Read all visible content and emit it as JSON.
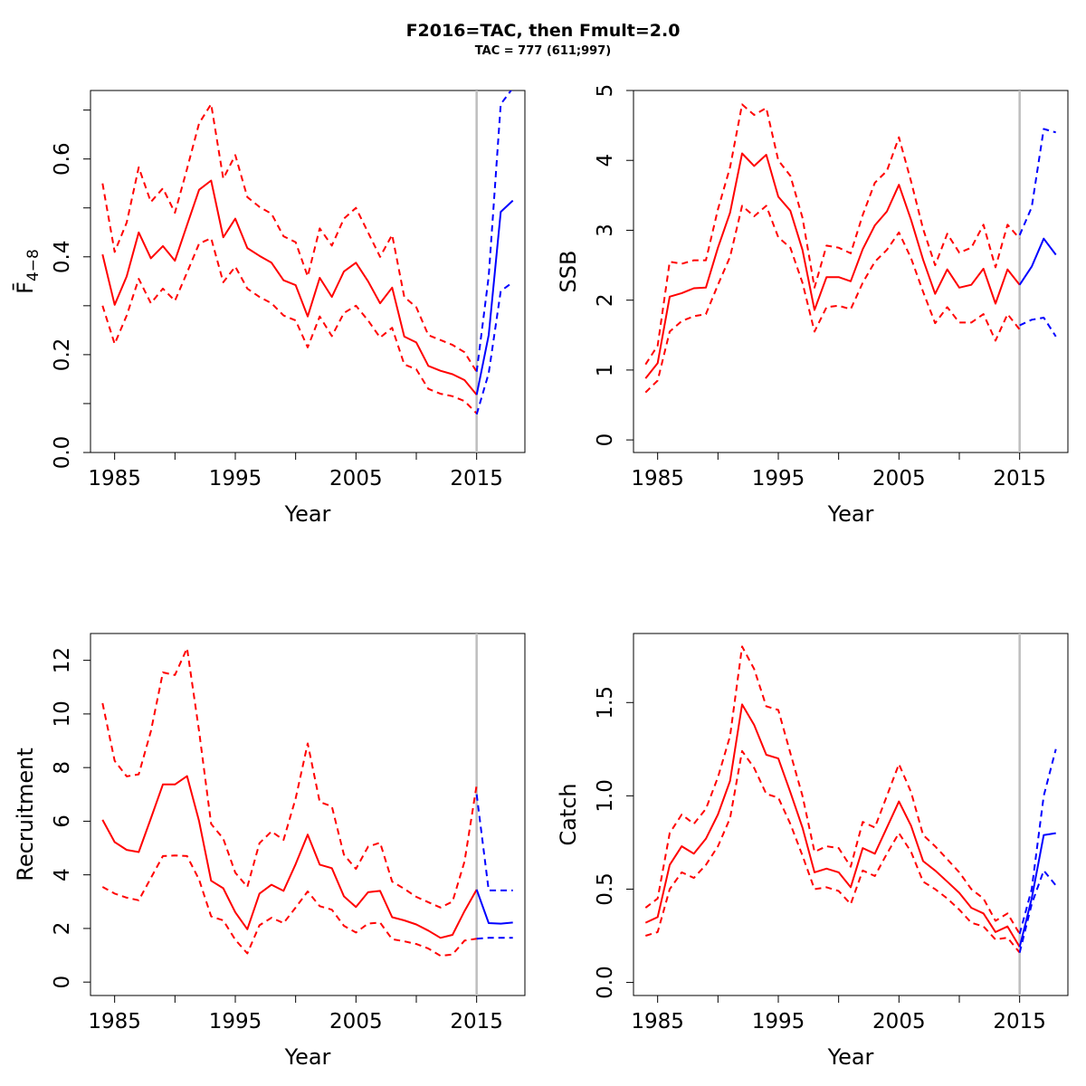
{
  "figure": {
    "title": "F2016=TAC, then Fmult=2.0",
    "subtitle": "TAC = 777 (611;997)"
  },
  "colors": {
    "historical": "#ff0000",
    "forecast": "#0000ff",
    "divider": "#bebebe",
    "axis": "#000000"
  },
  "chart_data": [
    {
      "type": "line",
      "id": "fbar",
      "ylabel": "F̄",
      "ylabel_sub": "4−8",
      "xlabel": "Year",
      "xlim": [
        1983,
        2019
      ],
      "ylim": [
        0,
        0.74
      ],
      "xticks": [
        1985,
        1995,
        2005,
        2015
      ],
      "yticks": [
        0.0,
        0.2,
        0.4,
        0.6
      ],
      "ytick_labels": [
        "0.0",
        "0.2",
        "0.4",
        "0.6"
      ],
      "yminor": [
        0.1,
        0.3,
        0.5,
        0.7
      ],
      "divider_year": 2015,
      "x": [
        1984,
        1985,
        1986,
        1987,
        1988,
        1989,
        1990,
        1991,
        1992,
        1993,
        1994,
        1995,
        1996,
        1997,
        1998,
        1999,
        2000,
        2001,
        2002,
        2003,
        2004,
        2005,
        2006,
        2007,
        2008,
        2009,
        2010,
        2011,
        2012,
        2013,
        2014,
        2015
      ],
      "series": [
        {
          "role": "estimate",
          "values": [
            0.405,
            0.302,
            0.36,
            0.45,
            0.397,
            0.422,
            0.392,
            0.465,
            0.537,
            0.556,
            0.44,
            0.478,
            0.418,
            0.402,
            0.388,
            0.352,
            0.342,
            0.278,
            0.357,
            0.318,
            0.37,
            0.388,
            0.35,
            0.305,
            0.337,
            0.237,
            0.225,
            0.177,
            0.167,
            0.16,
            0.148,
            0.118
          ]
        },
        {
          "role": "upper",
          "values": [
            0.55,
            0.41,
            0.47,
            0.583,
            0.512,
            0.54,
            0.49,
            0.58,
            0.673,
            0.712,
            0.56,
            0.608,
            0.522,
            0.502,
            0.488,
            0.442,
            0.43,
            0.36,
            0.458,
            0.423,
            0.478,
            0.5,
            0.45,
            0.4,
            0.445,
            0.318,
            0.297,
            0.24,
            0.23,
            0.22,
            0.205,
            0.165
          ]
        },
        {
          "role": "lower",
          "values": [
            0.3,
            0.222,
            0.28,
            0.355,
            0.305,
            0.335,
            0.31,
            0.368,
            0.427,
            0.438,
            0.348,
            0.38,
            0.335,
            0.318,
            0.305,
            0.28,
            0.27,
            0.215,
            0.278,
            0.238,
            0.285,
            0.3,
            0.27,
            0.235,
            0.255,
            0.18,
            0.17,
            0.13,
            0.12,
            0.115,
            0.105,
            0.08
          ]
        }
      ],
      "forecast_x": [
        2015,
        2016,
        2017,
        2018
      ],
      "forecast": [
        {
          "role": "estimate",
          "values": [
            0.118,
            0.24,
            0.492,
            0.515
          ]
        },
        {
          "role": "upper",
          "values": [
            0.165,
            0.36,
            0.712,
            0.745
          ]
        },
        {
          "role": "lower",
          "values": [
            0.078,
            0.162,
            0.33,
            0.348
          ]
        }
      ]
    },
    {
      "type": "line",
      "id": "ssb",
      "ylabel": "SSB",
      "xlabel": "Year",
      "xlim": [
        1983,
        2019
      ],
      "ylim": [
        -0.18,
        5.0
      ],
      "xticks": [
        1985,
        1995,
        2005,
        2015
      ],
      "yticks": [
        0,
        1,
        2,
        3,
        4,
        5
      ],
      "ytick_labels": [
        "0",
        "1",
        "2",
        "3",
        "4",
        "5"
      ],
      "yminor": [],
      "divider_year": 2015,
      "x": [
        1984,
        1985,
        1986,
        1987,
        1988,
        1989,
        1990,
        1991,
        1992,
        1993,
        1994,
        1995,
        1996,
        1997,
        1998,
        1999,
        2000,
        2001,
        2002,
        2003,
        2004,
        2005,
        2006,
        2007,
        2008,
        2009,
        2010,
        2011,
        2012,
        2013,
        2014,
        2015
      ],
      "series": [
        {
          "role": "estimate",
          "values": [
            0.88,
            1.1,
            2.05,
            2.1,
            2.17,
            2.18,
            2.75,
            3.25,
            4.1,
            3.92,
            4.08,
            3.48,
            3.28,
            2.72,
            1.86,
            2.33,
            2.33,
            2.27,
            2.73,
            3.07,
            3.27,
            3.65,
            3.15,
            2.58,
            2.09,
            2.44,
            2.18,
            2.22,
            2.45,
            1.95,
            2.44,
            2.22
          ]
        },
        {
          "role": "upper",
          "values": [
            1.08,
            1.35,
            2.55,
            2.52,
            2.57,
            2.57,
            3.3,
            3.9,
            4.8,
            4.65,
            4.75,
            4.0,
            3.78,
            3.18,
            2.18,
            2.78,
            2.75,
            2.67,
            3.22,
            3.68,
            3.85,
            4.33,
            3.7,
            3.02,
            2.5,
            2.95,
            2.68,
            2.75,
            3.08,
            2.47,
            3.08,
            2.88
          ]
        },
        {
          "role": "lower",
          "values": [
            0.68,
            0.85,
            1.55,
            1.7,
            1.77,
            1.8,
            2.22,
            2.62,
            3.35,
            3.2,
            3.35,
            2.9,
            2.75,
            2.25,
            1.55,
            1.9,
            1.92,
            1.87,
            2.25,
            2.55,
            2.72,
            2.97,
            2.6,
            2.12,
            1.67,
            1.9,
            1.68,
            1.68,
            1.8,
            1.42,
            1.8,
            1.58
          ]
        }
      ],
      "forecast_x": [
        2015,
        2016,
        2017,
        2018
      ],
      "forecast": [
        {
          "role": "estimate",
          "values": [
            2.22,
            2.48,
            2.88,
            2.65
          ]
        },
        {
          "role": "upper",
          "values": [
            2.93,
            3.33,
            4.45,
            4.4
          ]
        },
        {
          "role": "lower",
          "values": [
            1.64,
            1.72,
            1.75,
            1.48
          ]
        }
      ]
    },
    {
      "type": "line",
      "id": "recruitment",
      "ylabel": "Recruitment",
      "xlabel": "Year",
      "xlim": [
        1983,
        2019
      ],
      "ylim": [
        -0.5,
        13.0
      ],
      "xticks": [
        1985,
        1995,
        2005,
        2015
      ],
      "yticks": [
        0,
        2,
        4,
        6,
        8,
        10,
        12
      ],
      "ytick_labels": [
        "0",
        "2",
        "4",
        "6",
        "8",
        "10",
        "12"
      ],
      "yminor": [],
      "divider_year": 2015,
      "x": [
        1984,
        1985,
        1986,
        1987,
        1988,
        1989,
        1990,
        1991,
        1992,
        1993,
        1994,
        1995,
        1996,
        1997,
        1998,
        1999,
        2000,
        2001,
        2002,
        2003,
        2004,
        2005,
        2006,
        2007,
        2008,
        2009,
        2010,
        2011,
        2012,
        2013,
        2014,
        2015
      ],
      "series": [
        {
          "role": "estimate",
          "values": [
            6.05,
            5.22,
            4.93,
            4.85,
            6.1,
            7.37,
            7.37,
            7.68,
            6.0,
            3.78,
            3.5,
            2.6,
            1.97,
            3.3,
            3.63,
            3.4,
            4.4,
            5.5,
            4.38,
            4.25,
            3.2,
            2.8,
            3.35,
            3.4,
            2.42,
            2.3,
            2.15,
            1.92,
            1.65,
            1.76,
            2.65,
            3.45
          ]
        },
        {
          "role": "upper",
          "values": [
            10.4,
            8.25,
            7.67,
            7.75,
            9.35,
            11.55,
            11.45,
            12.45,
            9.35,
            5.9,
            5.35,
            4.08,
            3.55,
            5.18,
            5.62,
            5.3,
            6.85,
            8.9,
            6.72,
            6.55,
            4.75,
            4.22,
            5.05,
            5.2,
            3.75,
            3.48,
            3.18,
            2.98,
            2.78,
            3.0,
            4.5,
            7.35
          ]
        },
        {
          "role": "lower",
          "values": [
            3.55,
            3.3,
            3.15,
            3.05,
            3.88,
            4.7,
            4.72,
            4.7,
            3.82,
            2.45,
            2.3,
            1.58,
            1.07,
            2.12,
            2.4,
            2.2,
            2.78,
            3.38,
            2.83,
            2.7,
            2.1,
            1.85,
            2.18,
            2.22,
            1.6,
            1.52,
            1.42,
            1.25,
            0.98,
            1.03,
            1.55,
            1.62
          ]
        }
      ],
      "forecast_x": [
        2015,
        2016,
        2017,
        2018
      ],
      "forecast": [
        {
          "role": "estimate",
          "values": [
            3.45,
            2.2,
            2.18,
            2.22
          ]
        },
        {
          "role": "upper",
          "values": [
            7.0,
            3.42,
            3.42,
            3.42
          ]
        },
        {
          "role": "lower",
          "values": [
            1.62,
            1.65,
            1.65,
            1.65
          ]
        }
      ]
    },
    {
      "type": "line",
      "id": "catch",
      "ylabel": "Catch",
      "xlabel": "Year",
      "xlim": [
        1983,
        2019
      ],
      "ylim": [
        -0.07,
        1.87
      ],
      "xticks": [
        1985,
        1995,
        2005,
        2015
      ],
      "yticks": [
        0.0,
        0.5,
        1.0,
        1.5
      ],
      "ytick_labels": [
        "0.0",
        "0.5",
        "1.0",
        "1.5"
      ],
      "yminor": [],
      "divider_year": 2015,
      "x": [
        1984,
        1985,
        1986,
        1987,
        1988,
        1989,
        1990,
        1991,
        1992,
        1993,
        1994,
        1995,
        1996,
        1997,
        1998,
        1999,
        2000,
        2001,
        2002,
        2003,
        2004,
        2005,
        2006,
        2007,
        2008,
        2009,
        2010,
        2011,
        2012,
        2013,
        2014,
        2015
      ],
      "series": [
        {
          "role": "estimate",
          "values": [
            0.32,
            0.35,
            0.63,
            0.73,
            0.69,
            0.77,
            0.9,
            1.08,
            1.49,
            1.38,
            1.22,
            1.2,
            1.02,
            0.83,
            0.59,
            0.61,
            0.59,
            0.51,
            0.72,
            0.69,
            0.83,
            0.97,
            0.84,
            0.65,
            0.6,
            0.54,
            0.48,
            0.4,
            0.37,
            0.27,
            0.3,
            0.19
          ]
        },
        {
          "role": "upper",
          "values": [
            0.4,
            0.45,
            0.8,
            0.9,
            0.85,
            0.93,
            1.1,
            1.32,
            1.8,
            1.68,
            1.48,
            1.46,
            1.23,
            1.0,
            0.7,
            0.73,
            0.72,
            0.62,
            0.86,
            0.83,
            1.0,
            1.17,
            1.02,
            0.79,
            0.73,
            0.66,
            0.59,
            0.5,
            0.45,
            0.33,
            0.37,
            0.26
          ]
        },
        {
          "role": "lower",
          "values": [
            0.25,
            0.27,
            0.5,
            0.59,
            0.56,
            0.63,
            0.73,
            0.88,
            1.24,
            1.15,
            1.01,
            0.99,
            0.85,
            0.68,
            0.5,
            0.51,
            0.49,
            0.42,
            0.6,
            0.57,
            0.69,
            0.8,
            0.7,
            0.54,
            0.5,
            0.45,
            0.39,
            0.32,
            0.3,
            0.23,
            0.24,
            0.16
          ]
        }
      ],
      "forecast_x": [
        2015,
        2016,
        2017,
        2018
      ],
      "forecast": [
        {
          "role": "estimate",
          "values": [
            0.19,
            0.45,
            0.79,
            0.8
          ]
        },
        {
          "role": "upper",
          "values": [
            0.26,
            0.5,
            1.0,
            1.25
          ]
        },
        {
          "role": "lower",
          "values": [
            0.16,
            0.42,
            0.6,
            0.52
          ]
        }
      ]
    }
  ]
}
